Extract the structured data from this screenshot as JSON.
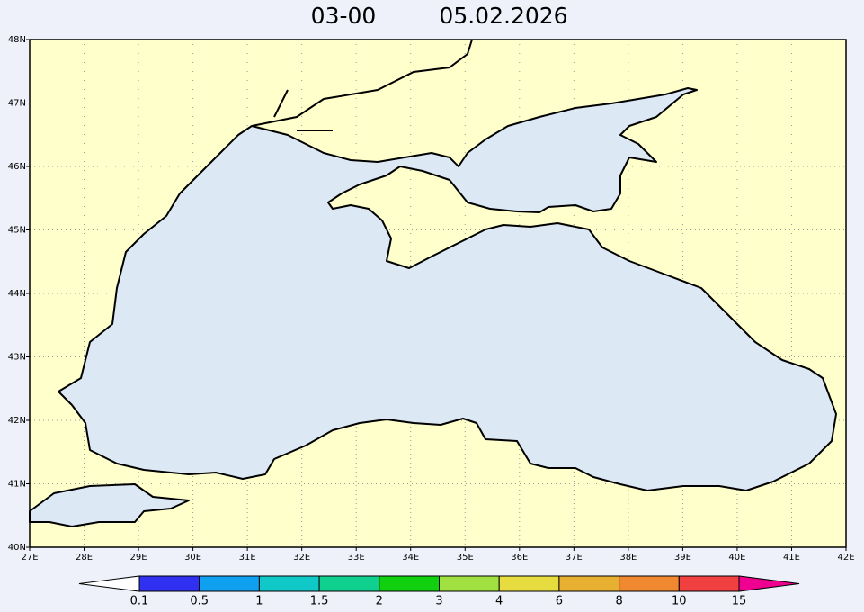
{
  "title": {
    "time": "03-00",
    "date": "05.02.2026"
  },
  "map": {
    "lat_labels": [
      "40N",
      "41N",
      "42N",
      "43N",
      "44N",
      "45N",
      "46N",
      "47N",
      "48N"
    ],
    "lon_labels": [
      "27E",
      "28E",
      "29E",
      "30E",
      "31E",
      "32E",
      "33E",
      "34E",
      "35E",
      "36E",
      "37E",
      "38E",
      "39E",
      "40E",
      "41E",
      "42E"
    ]
  },
  "legend": {
    "levels": [
      0.1,
      0.5,
      1,
      1.5,
      2,
      3,
      4,
      6,
      8,
      10,
      15
    ],
    "colors": [
      "#3030f0",
      "#10a0f0",
      "#10c8c8",
      "#10d090",
      "#10d010",
      "#a0e040",
      "#e6dc40",
      "#e8b030",
      "#f08830",
      "#f04040"
    ],
    "under_color": "#ffffff",
    "over_color": "#f00090"
  }
}
